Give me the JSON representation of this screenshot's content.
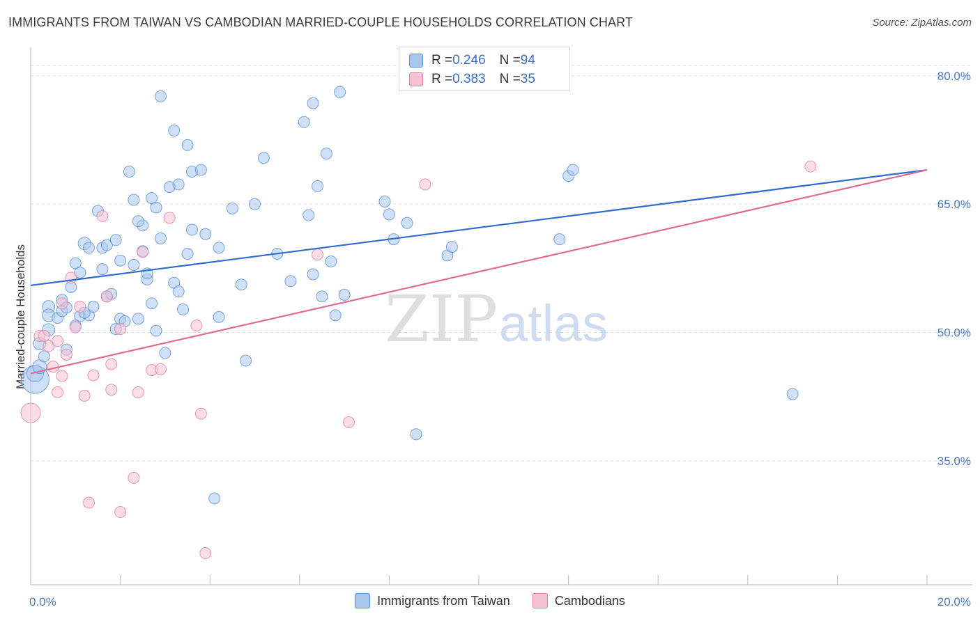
{
  "title": "IMMIGRANTS FROM TAIWAN VS CAMBODIAN MARRIED-COUPLE HOUSEHOLDS CORRELATION CHART",
  "source": "Source: ZipAtlas.com",
  "watermark": {
    "zip": "ZIP",
    "atlas": "atlas"
  },
  "legend_top": {
    "rows": [
      {
        "r_label": "R = ",
        "r_value": "0.246",
        "n_label": "N = ",
        "n_value": "94",
        "color": "#a9c6ee",
        "border": "#5b8fd6"
      },
      {
        "r_label": "R = ",
        "r_value": "0.383",
        "n_label": "N = ",
        "n_value": "35",
        "color": "#f6c1d2",
        "border": "#e27ea0"
      }
    ]
  },
  "legend_bottom": [
    {
      "label": "Immigrants from Taiwan",
      "color": "#a9c6ee",
      "border": "#5b8fd6"
    },
    {
      "label": "Cambodians",
      "color": "#f6c1d2",
      "border": "#e27ea0"
    }
  ],
  "chart_data": {
    "type": "scatter",
    "title": "IMMIGRANTS FROM TAIWAN VS CAMBODIAN MARRIED-COUPLE HOUSEHOLDS CORRELATION CHART",
    "xlabel": "",
    "ylabel": "Married-couple Households",
    "xlim": [
      0,
      20
    ],
    "ylim": [
      20.5,
      83
    ],
    "x_tick_labels": [
      {
        "value": 0,
        "label": "0.0%"
      },
      {
        "value": 20,
        "label": "20.0%"
      }
    ],
    "y_tick_labels": [
      {
        "value": 35,
        "label": "35.0%"
      },
      {
        "value": 50,
        "label": "50.0%"
      },
      {
        "value": 65,
        "label": "65.0%"
      },
      {
        "value": 80,
        "label": "80.0%"
      }
    ],
    "y_gridlines": [
      35,
      50,
      65,
      80
    ],
    "x_minor_ticks": [
      2,
      4,
      6,
      8,
      10,
      12,
      14,
      16,
      18,
      20
    ],
    "series": [
      {
        "name": "Immigrants from Taiwan",
        "color": "#a9c6ee",
        "stroke": "#5b8fd6",
        "trend": {
          "x": [
            0,
            20
          ],
          "y": [
            55.5,
            69.0
          ],
          "color": "#2e6ad0"
        },
        "points": [
          [
            0.1,
            44.5,
            20
          ],
          [
            0.1,
            45.2,
            12
          ],
          [
            0.2,
            46.0,
            10
          ],
          [
            0.2,
            48.7,
            9
          ],
          [
            0.3,
            47.2,
            8
          ],
          [
            0.4,
            50.3,
            9
          ],
          [
            0.4,
            53.0,
            9
          ],
          [
            0.4,
            52.0,
            9
          ],
          [
            0.6,
            51.7,
            8
          ],
          [
            0.7,
            52.5,
            8
          ],
          [
            0.7,
            53.8,
            8
          ],
          [
            0.8,
            48.0,
            8
          ],
          [
            0.8,
            52.9,
            8
          ],
          [
            0.9,
            55.3,
            8
          ],
          [
            1.0,
            58.1,
            8
          ],
          [
            1.1,
            51.9,
            8
          ],
          [
            1.1,
            57.0,
            8
          ],
          [
            1.2,
            60.4,
            9
          ],
          [
            1.3,
            59.9,
            8
          ],
          [
            1.3,
            52.0,
            8
          ],
          [
            1.4,
            53.0,
            8
          ],
          [
            1.5,
            64.2,
            8
          ],
          [
            1.6,
            59.9,
            8
          ],
          [
            1.6,
            57.4,
            8
          ],
          [
            1.7,
            60.2,
            8
          ],
          [
            1.7,
            54.2,
            8
          ],
          [
            1.8,
            54.5,
            8
          ],
          [
            1.9,
            50.4,
            8
          ],
          [
            1.9,
            60.8,
            8
          ],
          [
            2.0,
            58.4,
            8
          ],
          [
            2.0,
            51.6,
            8
          ],
          [
            2.1,
            51.3,
            8
          ],
          [
            2.2,
            68.8,
            8
          ],
          [
            2.3,
            65.5,
            8
          ],
          [
            2.3,
            57.9,
            8
          ],
          [
            2.4,
            51.6,
            8
          ],
          [
            2.5,
            62.5,
            8
          ],
          [
            2.5,
            59.5,
            8
          ],
          [
            2.6,
            56.2,
            8
          ],
          [
            2.6,
            56.9,
            8
          ],
          [
            2.7,
            53.4,
            8
          ],
          [
            2.7,
            65.7,
            8
          ],
          [
            2.8,
            64.6,
            8
          ],
          [
            2.8,
            50.2,
            8
          ],
          [
            2.9,
            61.0,
            8
          ],
          [
            2.9,
            77.6,
            8
          ],
          [
            3.0,
            47.6,
            8
          ],
          [
            3.1,
            67.0,
            8
          ],
          [
            3.2,
            73.6,
            8
          ],
          [
            3.2,
            55.8,
            8
          ],
          [
            3.3,
            54.8,
            8
          ],
          [
            3.3,
            67.3,
            8
          ],
          [
            3.4,
            52.7,
            8
          ],
          [
            3.5,
            59.2,
            8
          ],
          [
            3.5,
            71.9,
            8
          ],
          [
            3.6,
            62.0,
            8
          ],
          [
            3.6,
            68.8,
            8
          ],
          [
            3.8,
            69.0,
            8
          ],
          [
            3.9,
            61.5,
            8
          ],
          [
            4.1,
            30.6,
            8
          ],
          [
            4.2,
            59.9,
            8
          ],
          [
            4.2,
            51.8,
            8
          ],
          [
            4.5,
            64.5,
            8
          ],
          [
            4.7,
            55.6,
            8
          ],
          [
            4.8,
            46.7,
            8
          ],
          [
            5.0,
            65.0,
            8
          ],
          [
            5.2,
            70.4,
            8
          ],
          [
            5.5,
            59.2,
            8
          ],
          [
            5.8,
            56.0,
            8
          ],
          [
            6.1,
            74.6,
            8
          ],
          [
            6.2,
            63.7,
            8
          ],
          [
            6.3,
            56.8,
            8
          ],
          [
            6.3,
            76.8,
            8
          ],
          [
            6.4,
            67.1,
            8
          ],
          [
            6.5,
            54.2,
            8
          ],
          [
            6.6,
            70.9,
            8
          ],
          [
            6.7,
            58.3,
            8
          ],
          [
            6.8,
            52.0,
            8
          ],
          [
            6.9,
            78.1,
            8
          ],
          [
            7.0,
            54.4,
            8
          ],
          [
            7.9,
            65.3,
            8
          ],
          [
            8.0,
            63.8,
            8
          ],
          [
            8.1,
            60.9,
            8
          ],
          [
            8.4,
            62.8,
            8
          ],
          [
            8.6,
            38.1,
            8
          ],
          [
            9.3,
            59.0,
            8
          ],
          [
            9.4,
            60.0,
            8
          ],
          [
            11.8,
            60.9,
            8
          ],
          [
            12.0,
            68.3,
            8
          ],
          [
            12.1,
            69.0,
            8
          ],
          [
            17.0,
            42.8,
            8
          ],
          [
            1.0,
            50.8,
            8
          ],
          [
            1.2,
            52.3,
            8
          ],
          [
            2.4,
            63.0,
            8
          ]
        ]
      },
      {
        "name": "Cambodians",
        "color": "#f6c1d2",
        "stroke": "#e27ea0",
        "trend": {
          "x": [
            0,
            20
          ],
          "y": [
            45.2,
            69.0
          ],
          "color": "#e06b95"
        },
        "points": [
          [
            0.0,
            40.6,
            14
          ],
          [
            0.2,
            49.6,
            8
          ],
          [
            0.3,
            49.6,
            8
          ],
          [
            0.4,
            48.4,
            8
          ],
          [
            0.5,
            46.0,
            8
          ],
          [
            0.6,
            43.0,
            8
          ],
          [
            0.7,
            53.4,
            8
          ],
          [
            0.7,
            44.9,
            8
          ],
          [
            0.8,
            47.4,
            8
          ],
          [
            0.9,
            56.4,
            8
          ],
          [
            1.0,
            50.6,
            8
          ],
          [
            1.1,
            53.0,
            8
          ],
          [
            1.2,
            42.6,
            8
          ],
          [
            1.3,
            30.1,
            8
          ],
          [
            1.4,
            45.0,
            8
          ],
          [
            1.6,
            63.6,
            8
          ],
          [
            1.7,
            54.2,
            8
          ],
          [
            1.8,
            43.3,
            8
          ],
          [
            1.8,
            46.3,
            8
          ],
          [
            2.0,
            50.4,
            8
          ],
          [
            2.0,
            29.0,
            8
          ],
          [
            2.3,
            33.0,
            8
          ],
          [
            2.4,
            43.0,
            8
          ],
          [
            2.5,
            59.4,
            8
          ],
          [
            2.7,
            45.6,
            8
          ],
          [
            2.9,
            45.7,
            8
          ],
          [
            3.1,
            63.4,
            8
          ],
          [
            3.7,
            50.8,
            8
          ],
          [
            3.8,
            40.5,
            8
          ],
          [
            3.9,
            24.2,
            8
          ],
          [
            6.4,
            59.1,
            8
          ],
          [
            7.1,
            39.5,
            8
          ],
          [
            8.8,
            67.3,
            8
          ],
          [
            17.4,
            69.4,
            8
          ],
          [
            0.6,
            49.0,
            8
          ]
        ]
      }
    ]
  }
}
